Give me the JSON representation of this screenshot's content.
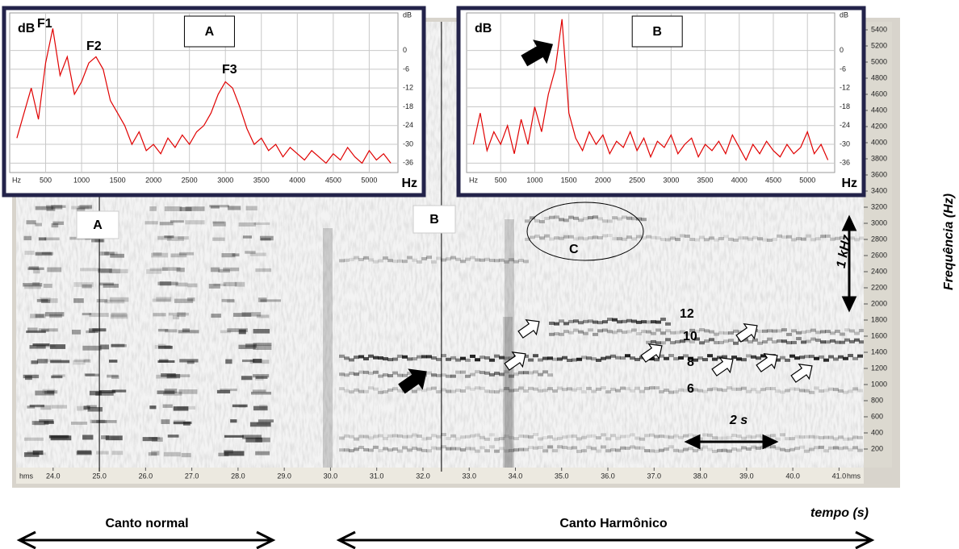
{
  "chart_data": [
    {
      "type": "spectrogram",
      "xlim": [
        23.2,
        41.5
      ],
      "xticks": [
        {
          "value": 24,
          "label": "24.0"
        },
        {
          "value": 25,
          "label": "25.0"
        },
        {
          "value": 26,
          "label": "26.0"
        },
        {
          "value": 27,
          "label": "27.0"
        },
        {
          "value": 28,
          "label": "28.0"
        },
        {
          "value": 29,
          "label": "29.0"
        },
        {
          "value": 30,
          "label": "30.0"
        },
        {
          "value": 31,
          "label": "31.0"
        },
        {
          "value": 32,
          "label": "32.0"
        },
        {
          "value": 33,
          "label": "33.0"
        },
        {
          "value": 34,
          "label": "34.0"
        },
        {
          "value": 35,
          "label": "35.0"
        },
        {
          "value": 36,
          "label": "36.0"
        },
        {
          "value": 37,
          "label": "37.0"
        },
        {
          "value": 38,
          "label": "38.0"
        },
        {
          "value": 39,
          "label": "39.0"
        },
        {
          "value": 40,
          "label": "40.0"
        },
        {
          "value": 41,
          "label": "41.0"
        }
      ],
      "x_unit": "hms",
      "ylim": [
        0,
        5500
      ],
      "yticks": [
        200,
        400,
        600,
        800,
        1000,
        1200,
        1400,
        1600,
        1800,
        2000,
        2200,
        2400,
        2600,
        2800,
        3000,
        3200,
        3400,
        3600,
        3800,
        4000,
        4200,
        4400,
        4600,
        4800,
        5000,
        5200,
        5400
      ],
      "xlabel": "tempo (s)",
      "ylabel": "Frequência (Hz)",
      "markers": [
        {
          "label": "A",
          "x": 25.0
        },
        {
          "label": "B",
          "x": 32.4
        }
      ],
      "region_label": "C",
      "harmonic_labels": [
        12,
        10,
        8,
        6
      ],
      "scale_labels": [
        "1 kHz",
        "2 s"
      ],
      "sections": [
        "Canto normal",
        "Canto Harmônico"
      ]
    },
    {
      "type": "line",
      "title": "A",
      "color": "#e00000",
      "x": [
        100,
        200,
        300,
        400,
        500,
        600,
        700,
        800,
        900,
        1000,
        1100,
        1200,
        1300,
        1400,
        1500,
        1600,
        1700,
        1800,
        1900,
        2000,
        2100,
        2200,
        2300,
        2400,
        2500,
        2600,
        2700,
        2800,
        2900,
        3000,
        3100,
        3200,
        3300,
        3400,
        3500,
        3600,
        3700,
        3800,
        3900,
        4000,
        4100,
        4200,
        4300,
        4400,
        4500,
        4600,
        4700,
        4800,
        4900,
        5000,
        5100,
        5200,
        5300
      ],
      "values": [
        -28,
        -20,
        -12,
        -22,
        -4,
        7,
        -8,
        -2,
        -14,
        -10,
        -4,
        -2,
        -6,
        -16,
        -20,
        -24,
        -30,
        -26,
        -32,
        -30,
        -33,
        -28,
        -31,
        -27,
        -30,
        -26,
        -24,
        -20,
        -14,
        -10,
        -12,
        -18,
        -25,
        -30,
        -28,
        -32,
        -30,
        -34,
        -31,
        -33,
        -35,
        -32,
        -34,
        -36,
        -33,
        -35,
        -31,
        -34,
        -36,
        -32,
        -35,
        -33,
        -36
      ],
      "xlim": [
        0,
        5400
      ],
      "xticks": [
        500,
        1000,
        1500,
        2000,
        2500,
        3000,
        3500,
        4000,
        4500,
        5000
      ],
      "xlabel": "Hz",
      "ylim": [
        -39,
        12
      ],
      "yticks": [
        0,
        -6,
        -12,
        -18,
        -24,
        -30,
        -36
      ],
      "ylabel": "dB",
      "grid": true,
      "annotations": [
        "F1",
        "F2",
        "F3"
      ]
    },
    {
      "type": "line",
      "title": "B",
      "color": "#e00000",
      "x": [
        100,
        200,
        300,
        400,
        500,
        600,
        700,
        800,
        900,
        1000,
        1100,
        1200,
        1300,
        1400,
        1500,
        1600,
        1700,
        1800,
        1900,
        2000,
        2100,
        2200,
        2300,
        2400,
        2500,
        2600,
        2700,
        2800,
        2900,
        3000,
        3100,
        3200,
        3300,
        3400,
        3500,
        3600,
        3700,
        3800,
        3900,
        4000,
        4100,
        4200,
        4300,
        4400,
        4500,
        4600,
        4700,
        4800,
        4900,
        5000,
        5100,
        5200,
        5300
      ],
      "values": [
        -30,
        -20,
        -32,
        -26,
        -30,
        -24,
        -33,
        -22,
        -30,
        -18,
        -26,
        -14,
        -6,
        10,
        -20,
        -28,
        -32,
        -26,
        -30,
        -27,
        -33,
        -29,
        -31,
        -26,
        -32,
        -28,
        -34,
        -29,
        -31,
        -27,
        -33,
        -30,
        -28,
        -34,
        -30,
        -32,
        -29,
        -33,
        -27,
        -31,
        -35,
        -30,
        -33,
        -29,
        -32,
        -34,
        -30,
        -33,
        -31,
        -26,
        -33,
        -30,
        -35
      ],
      "xlim": [
        0,
        5400
      ],
      "xticks": [
        500,
        1000,
        1500,
        2000,
        2500,
        3000,
        3500,
        4000,
        4500,
        5000
      ],
      "xlabel": "Hz",
      "ylim": [
        -39,
        12
      ],
      "yticks": [
        0,
        -6,
        -12,
        -18,
        -24,
        -30,
        -36
      ],
      "ylabel": "dB",
      "grid": true
    }
  ]
}
